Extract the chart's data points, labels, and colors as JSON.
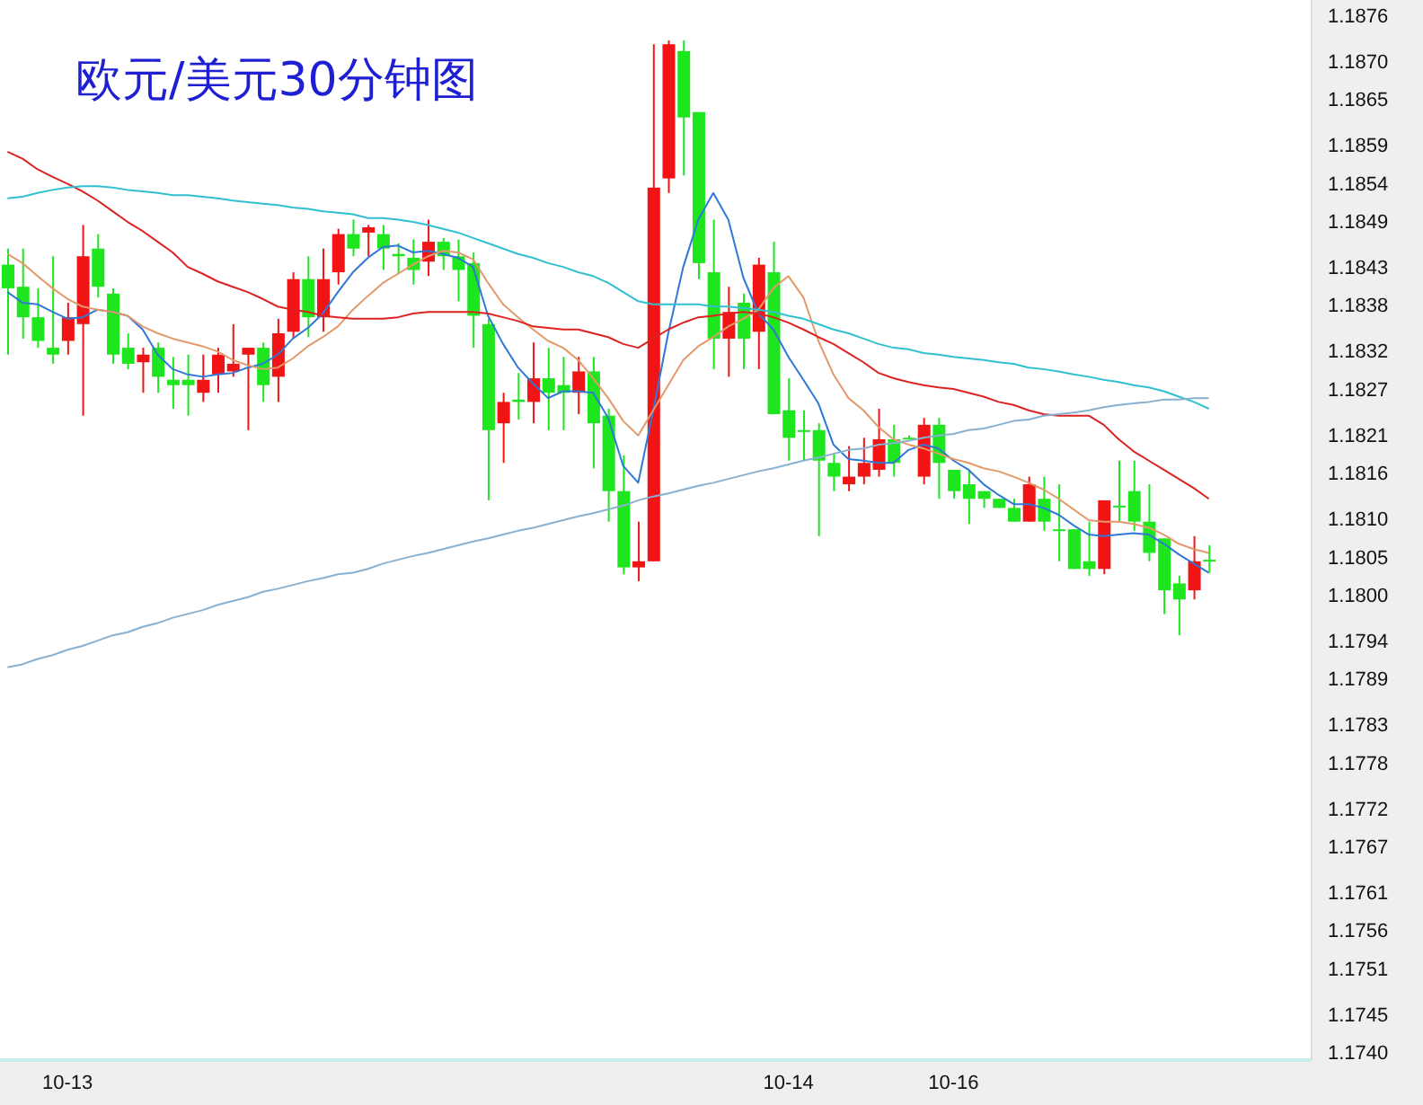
{
  "chart_data": {
    "type": "candlestick",
    "title": "欧元/美元30分钟图",
    "categories": [
      null,
      null,
      null,
      null,
      "10-13",
      null,
      null,
      null,
      null,
      null,
      null,
      null,
      null,
      null,
      null,
      null,
      null,
      null,
      null,
      null,
      null,
      null,
      null,
      null,
      null,
      null,
      null,
      null,
      null,
      null,
      null,
      null,
      null,
      null,
      null,
      null,
      null,
      null,
      null,
      null,
      null,
      null,
      null,
      null,
      null,
      null,
      null,
      null,
      null,
      null,
      null,
      null,
      "10-14",
      null,
      null,
      null,
      null,
      null,
      null,
      null,
      null,
      null,
      null,
      "10-16",
      null,
      null,
      null,
      null,
      null,
      null,
      null,
      null,
      null,
      null,
      null,
      null,
      null,
      null,
      null,
      null,
      null
    ],
    "ohlc": [
      [
        1.18433,
        1.18454,
        1.18315,
        1.18402
      ],
      [
        1.18404,
        1.18454,
        1.18336,
        1.18364
      ],
      [
        1.18364,
        1.18402,
        1.18324,
        1.18333
      ],
      [
        1.18324,
        1.18444,
        1.18303,
        1.18315
      ],
      [
        1.18333,
        1.18383,
        1.18315,
        1.18364
      ],
      [
        1.18355,
        1.18485,
        1.18235,
        1.18444
      ],
      [
        1.18454,
        1.18473,
        1.1839,
        1.18404
      ],
      [
        1.18395,
        1.18402,
        1.18303,
        1.18315
      ],
      [
        1.18324,
        1.18343,
        1.18296,
        1.18303
      ],
      [
        1.18305,
        1.18324,
        1.18265,
        1.18315
      ],
      [
        1.18324,
        1.18331,
        1.18265,
        1.18286
      ],
      [
        1.18282,
        1.18312,
        1.18244,
        1.18275
      ],
      [
        1.18282,
        1.18315,
        1.18235,
        1.18275
      ],
      [
        1.18265,
        1.18315,
        1.18253,
        1.18282
      ],
      [
        1.18289,
        1.18324,
        1.18265,
        1.18315
      ],
      [
        1.18293,
        1.18355,
        1.18286,
        1.18303
      ],
      [
        1.18315,
        1.18324,
        1.18216,
        1.18324
      ],
      [
        1.18324,
        1.18331,
        1.18253,
        1.18275
      ],
      [
        1.18286,
        1.18362,
        1.18253,
        1.18343
      ],
      [
        1.18345,
        1.18423,
        1.18336,
        1.18414
      ],
      [
        1.18414,
        1.18444,
        1.18338,
        1.18364
      ],
      [
        1.18364,
        1.18454,
        1.18345,
        1.18414
      ],
      [
        1.18423,
        1.1848,
        1.18407,
        1.18473
      ],
      [
        1.18473,
        1.18492,
        1.18444,
        1.18454
      ],
      [
        1.18475,
        1.18485,
        1.18444,
        1.18482
      ],
      [
        1.18473,
        1.18485,
        1.18426,
        1.18454
      ],
      [
        1.18447,
        1.18461,
        1.18421,
        1.18444
      ],
      [
        1.18442,
        1.18466,
        1.18407,
        1.18426
      ],
      [
        1.18437,
        1.18492,
        1.18418,
        1.18463
      ],
      [
        1.18463,
        1.18468,
        1.18426,
        1.18444
      ],
      [
        1.18444,
        1.18466,
        1.18385,
        1.18426
      ],
      [
        1.18435,
        1.18449,
        1.18324,
        1.18366
      ],
      [
        1.18355,
        1.18362,
        1.18124,
        1.18216
      ],
      [
        1.18225,
        1.18265,
        1.18173,
        1.18253
      ],
      [
        1.18256,
        1.18291,
        1.1823,
        1.18253
      ],
      [
        1.18253,
        1.18331,
        1.18225,
        1.18284
      ],
      [
        1.18284,
        1.18324,
        1.18216,
        1.18265
      ],
      [
        1.18275,
        1.18312,
        1.18216,
        1.18265
      ],
      [
        1.18265,
        1.18312,
        1.18237,
        1.18293
      ],
      [
        1.18293,
        1.18312,
        1.18166,
        1.18225
      ],
      [
        1.18235,
        1.18244,
        1.18096,
        1.18136
      ],
      [
        1.18136,
        1.18183,
        1.18027,
        1.18036
      ],
      [
        1.18036,
        1.18096,
        1.18018,
        1.18044
      ],
      [
        1.18044,
        1.18722,
        1.18044,
        1.18534
      ],
      [
        1.18546,
        1.18727,
        1.18527,
        1.18722
      ],
      [
        1.18713,
        1.18727,
        1.1855,
        1.18626
      ],
      [
        1.18633,
        1.18633,
        1.18414,
        1.18435
      ],
      [
        1.18423,
        1.18492,
        1.18296,
        1.18336
      ],
      [
        1.18336,
        1.18404,
        1.18286,
        1.18371
      ],
      [
        1.18383,
        1.18395,
        1.18296,
        1.18336
      ],
      [
        1.18345,
        1.18442,
        1.18296,
        1.18433
      ],
      [
        1.18423,
        1.18463,
        1.18237,
        1.18237
      ],
      [
        1.18242,
        1.18284,
        1.18176,
        1.18206
      ],
      [
        1.18216,
        1.18242,
        1.18176,
        1.18216
      ],
      [
        1.18216,
        1.18225,
        1.18077,
        1.18176
      ],
      [
        1.18173,
        1.18185,
        1.18136,
        1.18155
      ],
      [
        1.18145,
        1.18195,
        1.18136,
        1.18155
      ],
      [
        1.18155,
        1.18206,
        1.18145,
        1.18173
      ],
      [
        1.18164,
        1.18244,
        1.18155,
        1.18204
      ],
      [
        1.18204,
        1.18223,
        1.18155,
        1.18173
      ],
      [
        1.18206,
        1.18209,
        1.18204,
        1.18206
      ],
      [
        1.18155,
        1.18232,
        1.18145,
        1.18223
      ],
      [
        1.18223,
        1.18232,
        1.18126,
        1.18173
      ],
      [
        1.18164,
        1.18164,
        1.18126,
        1.18136
      ],
      [
        1.18145,
        1.18164,
        1.18093,
        1.18126
      ],
      [
        1.18136,
        1.18136,
        1.18114,
        1.18126
      ],
      [
        1.18126,
        1.18126,
        1.18114,
        1.18114
      ],
      [
        1.18114,
        1.18126,
        1.18096,
        1.18096
      ],
      [
        1.18096,
        1.18155,
        1.18096,
        1.18145
      ],
      [
        1.18126,
        1.18155,
        1.18084,
        1.18096
      ],
      [
        1.18086,
        1.18145,
        1.18044,
        1.18086
      ],
      [
        1.18086,
        1.18086,
        1.18034,
        1.18034
      ],
      [
        1.18044,
        1.18096,
        1.18025,
        1.18034
      ],
      [
        1.18034,
        1.18124,
        1.18027,
        1.18124
      ],
      [
        1.18117,
        1.18176,
        1.18096,
        1.18117
      ],
      [
        1.18136,
        1.18176,
        1.18084,
        1.18096
      ],
      [
        1.18096,
        1.18145,
        1.18044,
        1.18055
      ],
      [
        1.18074,
        1.18074,
        1.17975,
        1.18006
      ],
      [
        1.18015,
        1.18025,
        1.17947,
        1.17994
      ],
      [
        1.18006,
        1.18077,
        1.17994,
        1.18044
      ],
      [
        1.18046,
        1.18065,
        1.18029,
        1.18046
      ]
    ],
    "colors": [
      "#1ee61e",
      "#1ee61e",
      "#1ee61e",
      "#1ee61e",
      "#f01414",
      "#f01414",
      "#1ee61e",
      "#1ee61e",
      "#1ee61e",
      "#f01414",
      "#1ee61e",
      "#1ee61e",
      "#1ee61e",
      "#f01414",
      "#f01414",
      "#f01414",
      "#f01414",
      "#1ee61e",
      "#f01414",
      "#f01414",
      "#1ee61e",
      "#f01414",
      "#f01414",
      "#1ee61e",
      "#f01414",
      "#1ee61e",
      "#1ee61e",
      "#1ee61e",
      "#f01414",
      "#1ee61e",
      "#1ee61e",
      "#1ee61e",
      "#1ee61e",
      "#f01414",
      "#1ee61e",
      "#f01414",
      "#1ee61e",
      "#1ee61e",
      "#f01414",
      "#1ee61e",
      "#1ee61e",
      "#1ee61e",
      "#f01414",
      "#f01414",
      "#f01414",
      "#1ee61e",
      "#1ee61e",
      "#1ee61e",
      "#f01414",
      "#1ee61e",
      "#f01414",
      "#1ee61e",
      "#1ee61e",
      "#1ee61e",
      "#1ee61e",
      "#1ee61e",
      "#f01414",
      "#f01414",
      "#f01414",
      "#1ee61e",
      "#1ee61e",
      "#f01414",
      "#1ee61e",
      "#1ee61e",
      "#1ee61e",
      "#1ee61e",
      "#1ee61e",
      "#1ee61e",
      "#f01414",
      "#1ee61e",
      "#1ee61e",
      "#1ee61e",
      "#1ee61e",
      "#f01414",
      "#1ee61e",
      "#1ee61e",
      "#1ee61e",
      "#1ee61e",
      "#1ee61e",
      "#f01414",
      "#1ee61e"
    ],
    "series": [
      {
        "type": "line",
        "color": "#2f78d8",
        "values": [
          1.18397,
          1.18383,
          1.18381,
          1.18371,
          1.18362,
          1.18364,
          1.18374,
          1.18371,
          1.18366,
          1.18348,
          1.18315,
          1.18296,
          1.18289,
          1.18286,
          1.18289,
          1.18291,
          1.18298,
          1.18303,
          1.18315,
          1.18336,
          1.1835,
          1.18369,
          1.18397,
          1.18423,
          1.18442,
          1.18456,
          1.18458,
          1.18449,
          1.18451,
          1.18447,
          1.18442,
          1.1843,
          1.18366,
          1.18329,
          1.18298,
          1.18277,
          1.18258,
          1.18267,
          1.18267,
          1.18265,
          1.18232,
          1.18169,
          1.18147,
          1.18242,
          1.18343,
          1.1843,
          1.18492,
          1.18527,
          1.18492,
          1.18416,
          1.18369,
          1.18348,
          1.18312,
          1.18282,
          1.18251,
          1.18197,
          1.18178,
          1.18176,
          1.18173,
          1.18173,
          1.1819,
          1.18197,
          1.18192,
          1.18176,
          1.18164,
          1.18145,
          1.18131,
          1.18119,
          1.18119,
          1.18114,
          1.18105,
          1.18091,
          1.18079,
          1.18077,
          1.18079,
          1.18081,
          1.18079,
          1.18067,
          1.18053,
          1.18041,
          1.18029
        ]
      },
      {
        "type": "line",
        "color": "#e39a6a",
        "values": [
          1.18447,
          1.18435,
          1.18418,
          1.18402,
          1.18388,
          1.18378,
          1.18374,
          1.18371,
          1.18366,
          1.18352,
          1.18343,
          1.18336,
          1.18331,
          1.18326,
          1.18319,
          1.18308,
          1.18301,
          1.18296,
          1.18298,
          1.1831,
          1.18326,
          1.18338,
          1.18352,
          1.18374,
          1.18392,
          1.18409,
          1.18421,
          1.18433,
          1.18444,
          1.18451,
          1.18449,
          1.1844,
          1.18409,
          1.18381,
          1.18364,
          1.18348,
          1.18333,
          1.18324,
          1.18308,
          1.18284,
          1.18258,
          1.18228,
          1.18209,
          1.18242,
          1.18275,
          1.18308,
          1.18326,
          1.18338,
          1.18352,
          1.18362,
          1.18374,
          1.18402,
          1.18418,
          1.1839,
          1.18333,
          1.18289,
          1.18258,
          1.18242,
          1.1822,
          1.18204,
          1.18197,
          1.18192,
          1.18185,
          1.18178,
          1.18173,
          1.18166,
          1.18162,
          1.18155,
          1.18147,
          1.18138,
          1.18126,
          1.18112,
          1.18098,
          1.18096,
          1.18096,
          1.18093,
          1.18088,
          1.18079,
          1.18067,
          1.1806,
          1.18055
        ]
      },
      {
        "type": "line",
        "color": "#dd2222",
        "values": [
          1.18581,
          1.18572,
          1.18558,
          1.18548,
          1.18539,
          1.18529,
          1.18517,
          1.18503,
          1.18489,
          1.18477,
          1.18463,
          1.18449,
          1.1843,
          1.18421,
          1.18411,
          1.18404,
          1.18397,
          1.18388,
          1.18378,
          1.18374,
          1.18371,
          1.18366,
          1.18364,
          1.18362,
          1.18362,
          1.18362,
          1.18364,
          1.18369,
          1.18371,
          1.18371,
          1.18371,
          1.18371,
          1.18369,
          1.18364,
          1.18359,
          1.18352,
          1.1835,
          1.18348,
          1.18348,
          1.18343,
          1.18338,
          1.18329,
          1.18324,
          1.18336,
          1.18348,
          1.18357,
          1.18364,
          1.18366,
          1.18369,
          1.18371,
          1.18369,
          1.18364,
          1.18357,
          1.18348,
          1.18338,
          1.18329,
          1.18317,
          1.18305,
          1.18291,
          1.18284,
          1.18279,
          1.18275,
          1.18272,
          1.1827,
          1.18265,
          1.1826,
          1.18253,
          1.18249,
          1.18242,
          1.18237,
          1.18235,
          1.18235,
          1.18235,
          1.18223,
          1.18204,
          1.18188,
          1.18176,
          1.18164,
          1.18152,
          1.1814,
          1.18126
        ]
      },
      {
        "type": "line",
        "color": "#30c0d0",
        "values": [
          1.1852,
          1.18522,
          1.18527,
          1.18531,
          1.18534,
          1.18536,
          1.18536,
          1.18534,
          1.18531,
          1.18529,
          1.18527,
          1.18524,
          1.18524,
          1.18522,
          1.1852,
          1.18517,
          1.18515,
          1.18513,
          1.18511,
          1.18508,
          1.18506,
          1.18503,
          1.18501,
          1.18499,
          1.18494,
          1.18494,
          1.18492,
          1.18489,
          1.18485,
          1.1848,
          1.18475,
          1.18468,
          1.18461,
          1.18454,
          1.18447,
          1.18442,
          1.18435,
          1.1843,
          1.18423,
          1.18418,
          1.18409,
          1.18397,
          1.18385,
          1.18381,
          1.18381,
          1.18381,
          1.18381,
          1.18378,
          1.18378,
          1.18376,
          1.18374,
          1.18371,
          1.18366,
          1.18362,
          1.18355,
          1.18348,
          1.18343,
          1.18336,
          1.18329,
          1.18324,
          1.18322,
          1.18317,
          1.18315,
          1.18312,
          1.1831,
          1.18308,
          1.18305,
          1.18303,
          1.18298,
          1.18296,
          1.18293,
          1.18289,
          1.18286,
          1.18282,
          1.18279,
          1.18275,
          1.18272,
          1.18267,
          1.1826,
          1.18253,
          1.18244
        ]
      },
      {
        "type": "line",
        "color": "#88b0d0",
        "values": [
          1.17905,
          1.17909,
          1.17916,
          1.17921,
          1.17928,
          1.17933,
          1.1794,
          1.17947,
          1.17951,
          1.17958,
          1.17963,
          1.1797,
          1.17975,
          1.1798,
          1.17987,
          1.17992,
          1.17997,
          1.18004,
          1.18008,
          1.18013,
          1.18018,
          1.18022,
          1.18027,
          1.18029,
          1.18034,
          1.18041,
          1.18046,
          1.18051,
          1.18055,
          1.1806,
          1.18065,
          1.1807,
          1.18074,
          1.18079,
          1.18084,
          1.18088,
          1.18093,
          1.18098,
          1.18103,
          1.18107,
          1.18112,
          1.18117,
          1.18124,
          1.18129,
          1.18133,
          1.18138,
          1.18143,
          1.18147,
          1.18152,
          1.18157,
          1.18162,
          1.18166,
          1.18171,
          1.18176,
          1.1818,
          1.18185,
          1.1819,
          1.18192,
          1.18197,
          1.18199,
          1.18202,
          1.18206,
          1.18209,
          1.18211,
          1.18216,
          1.18218,
          1.18223,
          1.18228,
          1.1823,
          1.18235,
          1.18237,
          1.18239,
          1.18242,
          1.18246,
          1.18249,
          1.18251,
          1.18253,
          1.18256,
          1.18256,
          1.18258,
          1.18258
        ]
      }
    ],
    "ylim": [
      1.1739,
      1.1878
    ],
    "yticks": [
      {
        "value": 1.174,
        "label": "1.1740"
      },
      1.1745,
      1.1751,
      1.1756,
      1.1761,
      1.1767,
      1.1772,
      1.1778,
      1.1783,
      1.1789,
      1.1794,
      {
        "value": 1.18,
        "label": "1.1800"
      },
      1.1805,
      {
        "value": 1.181,
        "label": "1.1810"
      },
      1.1816,
      1.1821,
      1.1827,
      1.1832,
      1.1838,
      1.1843,
      1.1849,
      1.1854,
      1.1859,
      1.1865,
      {
        "value": 1.187,
        "label": "1.1870"
      },
      1.1876
    ]
  }
}
